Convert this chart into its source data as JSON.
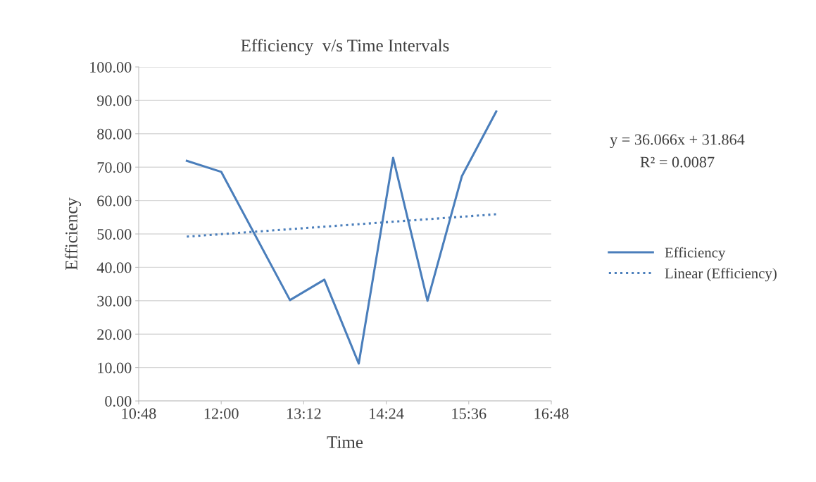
{
  "chart_data": {
    "type": "line",
    "title": "Efficiency  v/s Time Intervals",
    "xlabel": "Time",
    "ylabel": "Efficiency",
    "series": [
      {
        "name": "Efficiency",
        "color": "#4a7ebb",
        "x": [
          11.5,
          12.0,
          13.0,
          13.5,
          14.0,
          14.5,
          15.0,
          15.5,
          16.0
        ],
        "values": [
          71.9,
          68.6,
          30.2,
          36.3,
          11.2,
          72.8,
          30.0,
          67.3,
          86.7
        ],
        "line_style": "solid"
      },
      {
        "name": "Linear (Efficiency)",
        "color": "#4a7ebb",
        "x": [
          11.5,
          16.0
        ],
        "values": [
          49.2,
          55.9
        ],
        "line_style": "dotted"
      }
    ],
    "xlim": [
      10.8,
      16.8
    ],
    "xticks": [
      {
        "value": 10.8,
        "label": "10:48"
      },
      {
        "value": 12.0,
        "label": "12:00"
      },
      {
        "value": 13.2,
        "label": "13:12"
      },
      {
        "value": 14.4,
        "label": "14:24"
      },
      {
        "value": 15.6,
        "label": "15:36"
      },
      {
        "value": 16.8,
        "label": "16:48"
      }
    ],
    "ylim": [
      0,
      100
    ],
    "yticks": [
      {
        "value": 0,
        "label": "0.00"
      },
      {
        "value": 10,
        "label": "10.00"
      },
      {
        "value": 20,
        "label": "20.00"
      },
      {
        "value": 30,
        "label": "30.00"
      },
      {
        "value": 40,
        "label": "40.00"
      },
      {
        "value": 50,
        "label": "50.00"
      },
      {
        "value": 60,
        "label": "60.00"
      },
      {
        "value": 70,
        "label": "70.00"
      },
      {
        "value": 80,
        "label": "80.00"
      },
      {
        "value": 90,
        "label": "90.00"
      },
      {
        "value": 100,
        "label": "100.00"
      }
    ],
    "annotations": [
      "y = 36.066x + 31.864",
      "R² = 0.0087"
    ],
    "grid": "y",
    "legend": "right",
    "marker": "none"
  }
}
